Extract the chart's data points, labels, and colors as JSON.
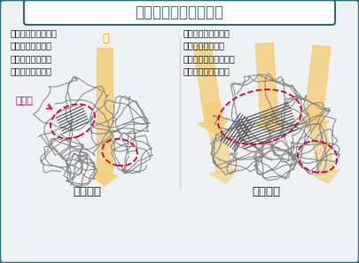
{
  "title": "高分子の配列イメージ",
  "title_color": "#2e6b7e",
  "bg_color": "#eef2f5",
  "border_color": "#2e6b7e",
  "left_label": "低結晶性",
  "right_label": "高結晶性",
  "left_desc": "結晶サイズが小さく\n結晶化度が低いと\n光が一様に透過し\n高透明となります",
  "right_desc": "結晶サイズが大きく\n結晶化度が高いと\n結晶部で光が乱反射し\n透明度が下がります",
  "hikari_label": "光",
  "hikari_color": "#f5a500",
  "crystal_label": "結晶部",
  "crystal_color": "#dd0033",
  "light_band_color": "#f5cc70",
  "light_band_alpha": 0.75,
  "chain_color": "#888888",
  "crystal_line_color": "#555555",
  "dashed_ellipse_color": "#dd0033",
  "text_color": "#1a1a1a"
}
